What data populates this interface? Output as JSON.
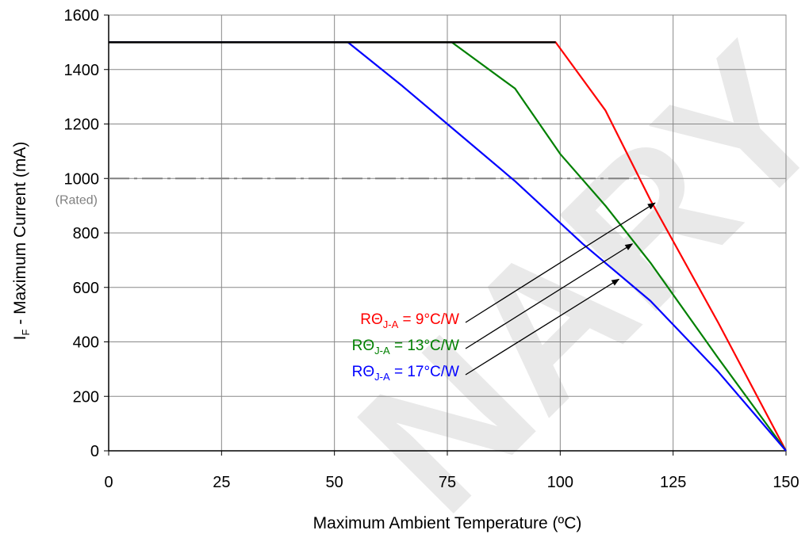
{
  "chart_data": {
    "type": "line",
    "title": "",
    "xlabel": "Maximum Ambient Temperature (ºC)",
    "ylabel_main": "I",
    "ylabel_sub": "F",
    "ylabel_rest": " - Maximum Current (mA)",
    "xlim": [
      0,
      150
    ],
    "ylim": [
      0,
      1600
    ],
    "x_ticks": [
      0,
      25,
      50,
      75,
      100,
      125,
      150
    ],
    "y_ticks": [
      0,
      200,
      400,
      600,
      800,
      1000,
      1200,
      1400,
      1600
    ],
    "grid": true,
    "series": [
      {
        "color": "#ff0000",
        "points": [
          [
            0,
            1500
          ],
          [
            99,
            1500
          ],
          [
            110,
            1250
          ],
          [
            120,
            920
          ],
          [
            135,
            470
          ],
          [
            150,
            0
          ]
        ]
      },
      {
        "color": "#008000",
        "points": [
          [
            0,
            1500
          ],
          [
            76,
            1500
          ],
          [
            90,
            1330
          ],
          [
            100,
            1090
          ],
          [
            110,
            900
          ],
          [
            120,
            690
          ],
          [
            135,
            340
          ],
          [
            150,
            0
          ]
        ]
      },
      {
        "color": "#0000ff",
        "points": [
          [
            0,
            1500
          ],
          [
            53,
            1500
          ],
          [
            65,
            1340
          ],
          [
            75,
            1200
          ],
          [
            90,
            990
          ],
          [
            105,
            760
          ],
          [
            120,
            550
          ],
          [
            135,
            290
          ],
          [
            150,
            0
          ]
        ]
      }
    ],
    "black_line": {
      "color": "#000000",
      "points": [
        [
          0,
          1500
        ],
        [
          99,
          1500
        ]
      ]
    },
    "rated_line": {
      "y": 1000,
      "x_end": 118,
      "color": "#808080",
      "label": "(Rated)"
    },
    "annotations": [
      {
        "pre": "RΘ",
        "sub": "J-A",
        "post": " =   9°C/W",
        "color": "#ff0000",
        "arrow_to": [
          121,
          910
        ]
      },
      {
        "pre": "RΘ",
        "sub": "J-A",
        "post": " = 13°C/W",
        "color": "#008000",
        "arrow_to": [
          116,
          760
        ]
      },
      {
        "pre": "RΘ",
        "sub": "J-A",
        "post": " = 17°C/W",
        "color": "#0000ff",
        "arrow_to": [
          113,
          630
        ]
      }
    ],
    "watermark": "NARY"
  }
}
